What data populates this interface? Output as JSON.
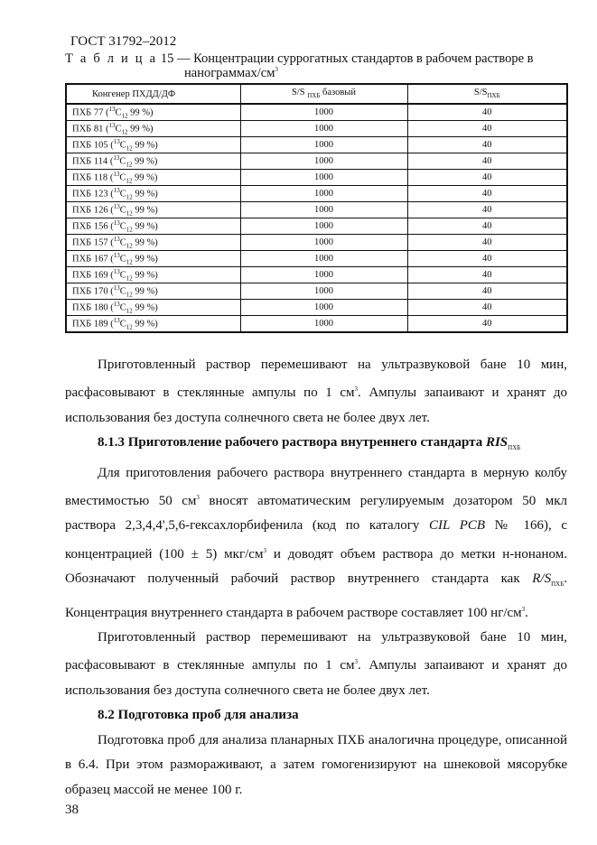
{
  "header": "ГОСТ 31792–2012",
  "table": {
    "caption_label": "Т а б л и ц а",
    "caption_num": "15 — Концентрации суррогатных стандартов в рабочем растворе в",
    "caption_line2": "нанограммах/см",
    "caption_sup": "3",
    "columns": [
      "Конгенер ПХДД/ДФ",
      "S/S",
      "ПХБ",
      "базовый",
      "S/S",
      "ПХБ"
    ],
    "rows": [
      {
        "name": "ПХБ 77",
        "base": "1000",
        "val": "40"
      },
      {
        "name": "ПХБ 81",
        "base": "1000",
        "val": "40"
      },
      {
        "name": "ПХБ 105",
        "base": "1000",
        "val": "40"
      },
      {
        "name": "ПХБ 114",
        "base": "1000",
        "val": "40"
      },
      {
        "name": "ПХБ 118",
        "base": "1000",
        "val": "40"
      },
      {
        "name": "ПХБ 123",
        "base": "1000",
        "val": "40"
      },
      {
        "name": "ПХБ 126",
        "base": "1000",
        "val": "40"
      },
      {
        "name": "ПХБ 156",
        "base": "1000",
        "val": "40"
      },
      {
        "name": "ПХБ 157",
        "base": "1000",
        "val": "40"
      },
      {
        "name": "ПХБ 167",
        "base": "1000",
        "val": "40"
      },
      {
        "name": "ПХБ 169",
        "base": "1000",
        "val": "40"
      },
      {
        "name": "ПХБ 170",
        "base": "1000",
        "val": "40"
      },
      {
        "name": "ПХБ 180",
        "base": "1000",
        "val": "40"
      },
      {
        "name": "ПХБ 189",
        "base": "1000",
        "val": "40"
      }
    ],
    "isotope_open": " (",
    "isotope_sup": "13",
    "isotope_c": "C",
    "isotope_sub": "12",
    "isotope_rest": " 99 %)"
  },
  "body": {
    "p1a": "Приготовленный раствор перемешивают на ультразвуковой бане 10 мин, расфасовывают в стеклянные ампулы по 1 см",
    "p1sup": "3",
    "p1b": ". Ампулы запаивают и хранят до использования без доступа солнечного света не более двух лет.",
    "h1": "8.1.3 Приготовление рабочего раствора внутреннего стандарта ",
    "h1i": "RIS",
    "h1sub": "ПХБ",
    "p2a": "Для приготовления рабочего раствора внутреннего стандарта в мерную колбу вместимостью 50 см",
    "p2sup1": "3",
    "p2b": " вносят автоматическим регулируемым дозатором 50 мкл раствора 2,3,4,4',5,6-гексахлорбифенила (код по каталогу ",
    "p2i": "CIL PCB",
    "p2c": " № 166), с концентрацией (100 ± 5) мкг/см",
    "p2sup2": "3",
    "p2d": " и доводят объем раствора до метки н-нонаном. Обозначают полученный рабочий раствор внутреннего стандарта как ",
    "p2i2": "R/S",
    "p2sub": "ПХБ",
    "p2e": ". Концентрация внутреннего стандарта в рабочем растворе составляет 100 нг/см",
    "p2sup3": "3",
    "p2f": ".",
    "p3a": "Приготовленный раствор перемешивают на ультразвуковой бане 10 мин, расфасовывают в стеклянные ампулы по 1 см",
    "p3sup": "3",
    "p3b": ". Ампулы запаивают и хранят до использования без доступа солнечного света не более двух лет.",
    "h2": "8.2 Подготовка проб для анализа",
    "p4": "Подготовка проб для анализа планарных ПХБ аналогична процедуре, описанной в 6.4. При этом размораживают, а затем гомогенизируют на шнековой мясорубке образец массой не менее 100 г."
  },
  "page_number": "38"
}
